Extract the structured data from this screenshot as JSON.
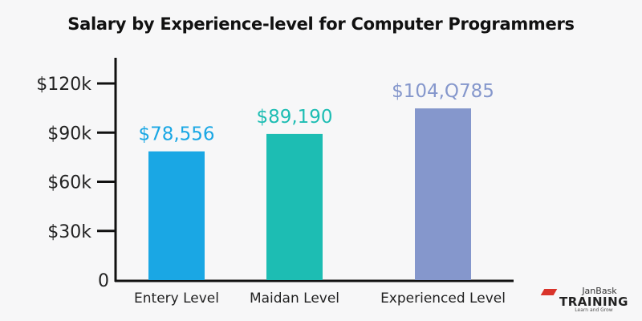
{
  "chart_data": {
    "type": "bar",
    "title": "Salary by Experience-level for Computer Programmers",
    "categories": [
      "Entery Level",
      "Maidan Level",
      "Experienced Level"
    ],
    "values": [
      78556,
      89190,
      104785
    ],
    "data_labels": [
      "$78,556",
      "$89,190",
      "$104,Q785"
    ],
    "colors": [
      "#1aa7e4",
      "#1dbdb3",
      "#8597cc"
    ],
    "yticks": [
      0,
      30000,
      60000,
      90000,
      120000
    ],
    "ytick_labels": [
      "0",
      "$30k",
      "$60k",
      "$90k",
      "$120k"
    ],
    "ylim": [
      0,
      120000
    ],
    "xlabel": "",
    "ylabel": "",
    "grid": false
  },
  "logo": {
    "line1": "JanBask",
    "line2": "TRAINING",
    "line3": "Learn and Grow"
  }
}
